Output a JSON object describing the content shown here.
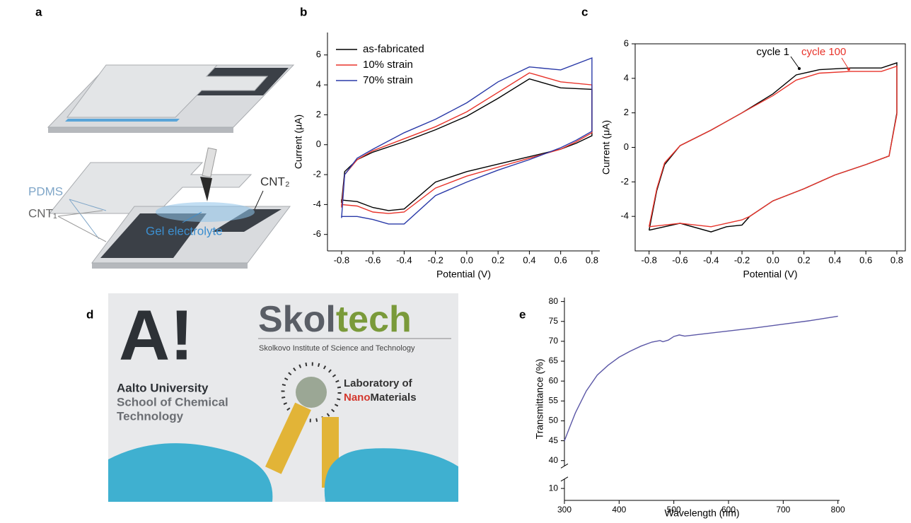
{
  "panel_labels": [
    "a",
    "b",
    "c",
    "d",
    "e"
  ],
  "diagram": {
    "pdms": "PDMS",
    "cnt1": "CNT₁",
    "cnt2": "CNT₂",
    "gel": "Gel electrolyte"
  },
  "photo": {
    "aalto_logo": "A!",
    "aalto_line1": "Aalto University",
    "aalto_line2": "School of Chemical",
    "aalto_line3": "Technology",
    "skol": "Skol",
    "tech": "tech",
    "skoltech_sub": "Skolkovo Institute of Science and Technology",
    "lab_line1": "Laboratory of",
    "lab_nano": "Nano",
    "lab_materials": "Materials"
  },
  "chart_data": [
    {
      "type": "line",
      "xlabel": "Potential (V)",
      "ylabel": "Current (μA)",
      "x": [
        -0.8,
        -0.78,
        -0.7,
        -0.6,
        -0.4,
        -0.2,
        0,
        0.2,
        0.4,
        0.6,
        0.8,
        0.8,
        0.7,
        0.6,
        0.4,
        0.2,
        0,
        -0.2,
        -0.4,
        -0.5,
        -0.6,
        -0.7,
        -0.8,
        -0.8
      ],
      "series": [
        {
          "name": "as-fabricated",
          "color": "#000000",
          "values": [
            -3.9,
            -1.8,
            -1.0,
            -0.5,
            0.2,
            1.0,
            1.9,
            3.1,
            4.4,
            3.8,
            3.7,
            0.6,
            0.1,
            -0.3,
            -0.8,
            -1.3,
            -1.8,
            -2.5,
            -4.3,
            -4.4,
            -4.2,
            -3.8,
            -3.7,
            -3.9
          ]
        },
        {
          "name": "10% strain",
          "color": "#e8332a",
          "values": [
            -4.2,
            -2.0,
            -1.0,
            -0.4,
            0.4,
            1.2,
            2.2,
            3.5,
            4.8,
            4.2,
            4.0,
            0.8,
            0.2,
            -0.3,
            -0.9,
            -1.5,
            -2.1,
            -2.9,
            -4.5,
            -4.6,
            -4.5,
            -4.1,
            -4.0,
            -4.2
          ]
        },
        {
          "name": "70% strain",
          "color": "#2a3aa8",
          "values": [
            -4.9,
            -2.0,
            -0.9,
            -0.3,
            0.8,
            1.7,
            2.8,
            4.2,
            5.2,
            5.0,
            5.8,
            0.9,
            0.3,
            -0.2,
            -1.0,
            -1.7,
            -2.5,
            -3.4,
            -5.3,
            -5.3,
            -5.0,
            -4.8,
            -4.8,
            -4.9
          ]
        }
      ],
      "xlim": [
        -0.89,
        0.85
      ],
      "ylim": [
        -7.1,
        7.5
      ],
      "xticks": [
        -0.8,
        -0.6,
        -0.4,
        -0.2,
        {
          "value": 0,
          "label": "0.0"
        },
        0.2,
        0.4,
        0.6,
        0.8
      ],
      "yticks": [
        -6,
        -4,
        -2,
        0,
        2,
        4,
        6
      ],
      "legend": "upper left",
      "frame": "axes"
    },
    {
      "type": "line",
      "xlabel": "Potential (V)",
      "ylabel": "Current (μA)",
      "x": [
        -0.8,
        -0.75,
        -0.7,
        -0.6,
        -0.4,
        -0.2,
        0,
        0.15,
        0.3,
        0.5,
        0.7,
        0.8,
        0.8,
        0.75,
        0.6,
        0.4,
        0.2,
        0,
        -0.15,
        -0.2,
        -0.3,
        -0.4,
        -0.6,
        -0.8
      ],
      "series": [
        {
          "name": "cycle 1",
          "color": "#000000",
          "values": [
            -4.8,
            -2.5,
            -1.0,
            0.1,
            1.0,
            2.0,
            3.1,
            4.2,
            4.5,
            4.6,
            4.6,
            4.9,
            2.0,
            -0.5,
            -1.0,
            -1.6,
            -2.4,
            -3.1,
            -4.0,
            -4.5,
            -4.6,
            -4.9,
            -4.4,
            -4.8
          ]
        },
        {
          "name": "cycle 100",
          "color": "#e8332a",
          "values": [
            -4.6,
            -2.4,
            -0.9,
            0.1,
            1.0,
            2.0,
            3.0,
            3.9,
            4.3,
            4.4,
            4.4,
            4.7,
            1.9,
            -0.5,
            -1.0,
            -1.6,
            -2.4,
            -3.1,
            -4.0,
            -4.2,
            -4.4,
            -4.6,
            -4.4,
            -4.6
          ]
        }
      ],
      "xlim": [
        -0.89,
        0.855
      ],
      "ylim": [
        -6,
        6
      ],
      "xticks": [
        -0.8,
        -0.6,
        -0.4,
        -0.2,
        {
          "value": 0,
          "label": "0.0"
        },
        0.2,
        0.4,
        0.6,
        0.8
      ],
      "yticks": [
        -4,
        -2,
        0,
        2,
        4,
        6
      ],
      "legend": "inline",
      "frame": "box"
    },
    {
      "type": "line",
      "xlabel": "Wavelength (nm)",
      "ylabel": "Transmittance (%)",
      "x": [
        300,
        310,
        320,
        340,
        360,
        380,
        400,
        420,
        440,
        460,
        475,
        480,
        490,
        500,
        510,
        520,
        550,
        600,
        650,
        700,
        750,
        800
      ],
      "series": [
        {
          "color": "#5b57a6",
          "values": [
            45,
            48.5,
            52,
            57.5,
            61.5,
            64,
            66,
            67.5,
            68.8,
            69.8,
            70.2,
            69.9,
            70.3,
            71.2,
            71.6,
            71.3,
            71.8,
            72.6,
            73.4,
            74.3,
            75.2,
            76.3
          ]
        }
      ],
      "xlim": [
        300,
        803
      ],
      "ylim": [
        7,
        81
      ],
      "ybreak": [
        12,
        39
      ],
      "xticks": [
        300,
        400,
        500,
        600,
        700,
        800
      ],
      "yticks": [
        10,
        40,
        45,
        50,
        55,
        60,
        65,
        70,
        75,
        80
      ],
      "frame": "axes"
    }
  ]
}
